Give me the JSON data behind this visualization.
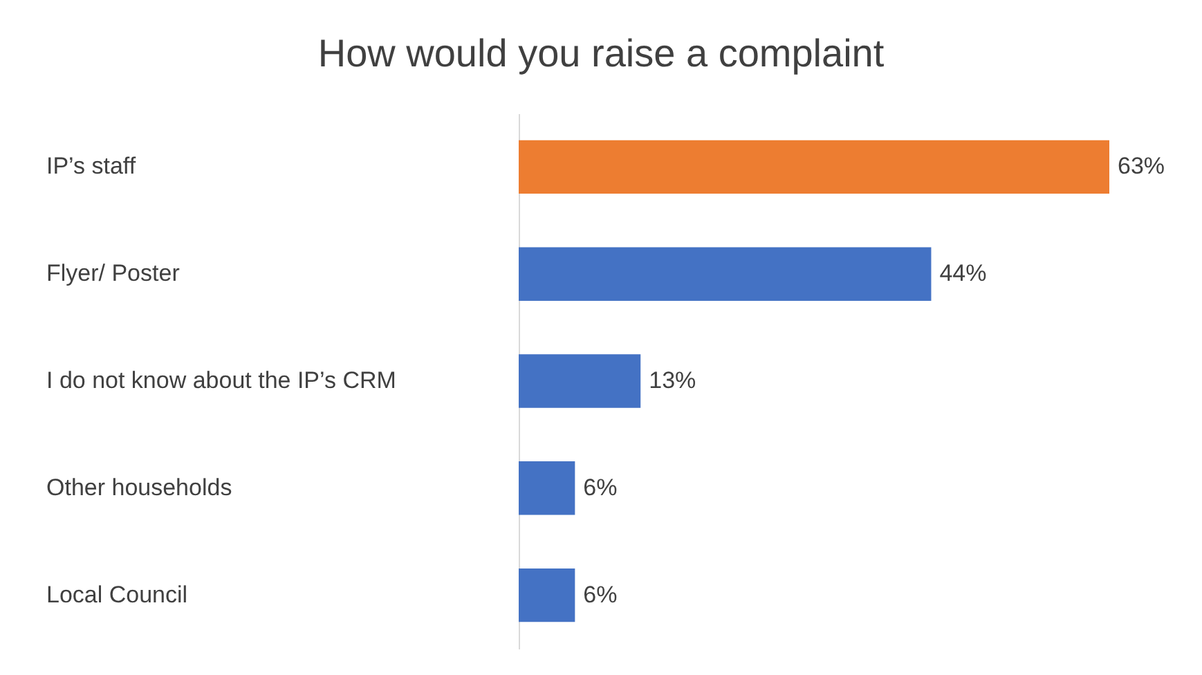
{
  "chart_data": {
    "type": "bar",
    "orientation": "horizontal",
    "title": "How would you raise a complaint",
    "categories": [
      "IP’s staff",
      "Flyer/ Poster",
      "I do not know about the IP’s CRM",
      "Other households",
      "Local Council"
    ],
    "values": [
      63,
      44,
      13,
      6,
      6
    ],
    "colors": [
      "#ed7d31",
      "#4472c4",
      "#4472c4",
      "#4472c4",
      "#4472c4"
    ],
    "value_labels": [
      "63%",
      "44%",
      "13%",
      "6%",
      "6%"
    ]
  }
}
